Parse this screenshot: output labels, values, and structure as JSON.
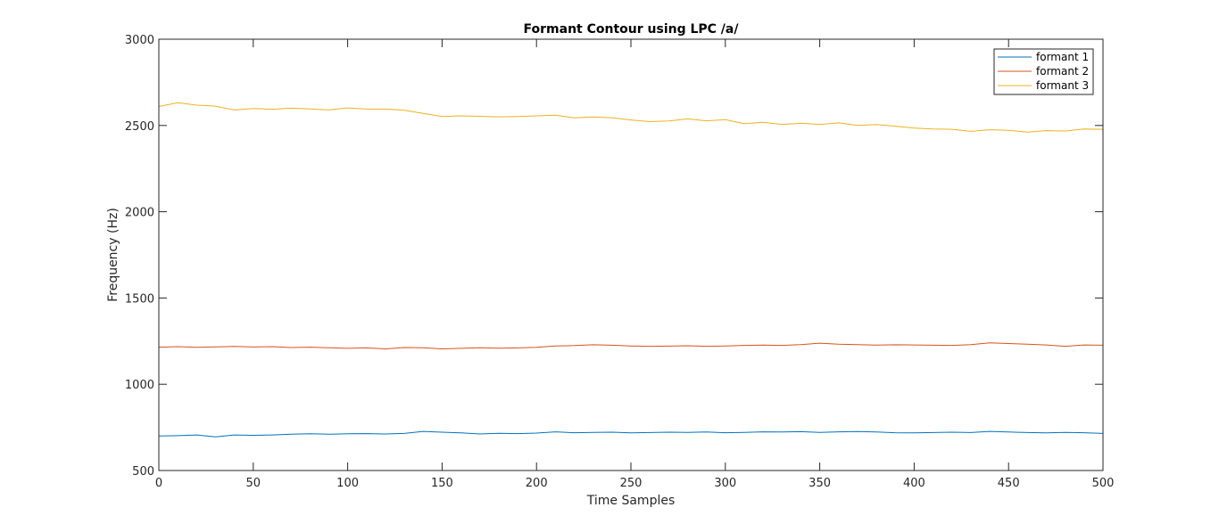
{
  "chart_data": {
    "type": "line",
    "title": "Formant Contour using LPC /a/",
    "xlabel": "Time Samples",
    "ylabel": "Frequency (Hz)",
    "xlim": [
      0,
      500
    ],
    "ylim": [
      500,
      3000
    ],
    "xticks": [
      0,
      50,
      100,
      150,
      200,
      250,
      300,
      350,
      400,
      450,
      500
    ],
    "yticks": [
      500,
      1000,
      1500,
      2000,
      2500,
      3000
    ],
    "grid": false,
    "legend_position": "top-right",
    "series": [
      {
        "name": "formant 1",
        "color": "#0072BD",
        "x": [
          0,
          10,
          20,
          30,
          40,
          50,
          60,
          70,
          80,
          90,
          100,
          110,
          120,
          130,
          140,
          150,
          160,
          170,
          180,
          190,
          200,
          210,
          220,
          230,
          240,
          250,
          260,
          270,
          280,
          290,
          300,
          310,
          320,
          330,
          340,
          350,
          360,
          370,
          380,
          390,
          400,
          410,
          420,
          430,
          440,
          450,
          460,
          470,
          480,
          490,
          500
        ],
        "values": [
          700,
          702,
          706,
          695,
          706,
          704,
          706,
          710,
          713,
          711,
          713,
          714,
          712,
          715,
          727,
          722,
          718,
          712,
          716,
          714,
          717,
          724,
          719,
          721,
          722,
          718,
          720,
          722,
          721,
          723,
          719,
          721,
          724,
          723,
          725,
          721,
          724,
          726,
          723,
          719,
          718,
          720,
          722,
          720,
          727,
          723,
          720,
          718,
          721,
          719,
          715
        ]
      },
      {
        "name": "formant 2",
        "color": "#D95319",
        "x": [
          0,
          10,
          20,
          30,
          40,
          50,
          60,
          70,
          80,
          90,
          100,
          110,
          120,
          130,
          140,
          150,
          160,
          170,
          180,
          190,
          200,
          210,
          220,
          230,
          240,
          250,
          260,
          270,
          280,
          290,
          300,
          310,
          320,
          330,
          340,
          350,
          360,
          370,
          380,
          390,
          400,
          410,
          420,
          430,
          440,
          450,
          460,
          470,
          480,
          490,
          500
        ],
        "values": [
          1215,
          1218,
          1214,
          1217,
          1219,
          1216,
          1218,
          1213,
          1215,
          1212,
          1208,
          1211,
          1205,
          1213,
          1212,
          1205,
          1208,
          1212,
          1209,
          1211,
          1214,
          1222,
          1224,
          1229,
          1226,
          1222,
          1220,
          1221,
          1223,
          1220,
          1222,
          1225,
          1227,
          1225,
          1230,
          1238,
          1232,
          1230,
          1227,
          1229,
          1228,
          1226,
          1225,
          1230,
          1240,
          1236,
          1232,
          1228,
          1220,
          1228,
          1226
        ]
      },
      {
        "name": "formant 3",
        "color": "#EDB120",
        "x": [
          0,
          10,
          20,
          30,
          40,
          50,
          60,
          70,
          80,
          90,
          100,
          110,
          120,
          130,
          140,
          150,
          160,
          170,
          180,
          190,
          200,
          210,
          220,
          230,
          240,
          250,
          260,
          270,
          280,
          290,
          300,
          310,
          320,
          330,
          340,
          350,
          360,
          370,
          380,
          390,
          400,
          410,
          420,
          430,
          440,
          450,
          460,
          470,
          480,
          490,
          500
        ],
        "values": [
          2610,
          2632,
          2618,
          2612,
          2590,
          2598,
          2594,
          2600,
          2596,
          2590,
          2602,
          2595,
          2595,
          2588,
          2570,
          2552,
          2556,
          2553,
          2550,
          2552,
          2556,
          2560,
          2544,
          2549,
          2545,
          2532,
          2522,
          2526,
          2538,
          2527,
          2534,
          2510,
          2518,
          2506,
          2513,
          2506,
          2515,
          2500,
          2505,
          2496,
          2485,
          2480,
          2478,
          2466,
          2475,
          2472,
          2462,
          2470,
          2468,
          2480,
          2478
        ]
      }
    ]
  }
}
